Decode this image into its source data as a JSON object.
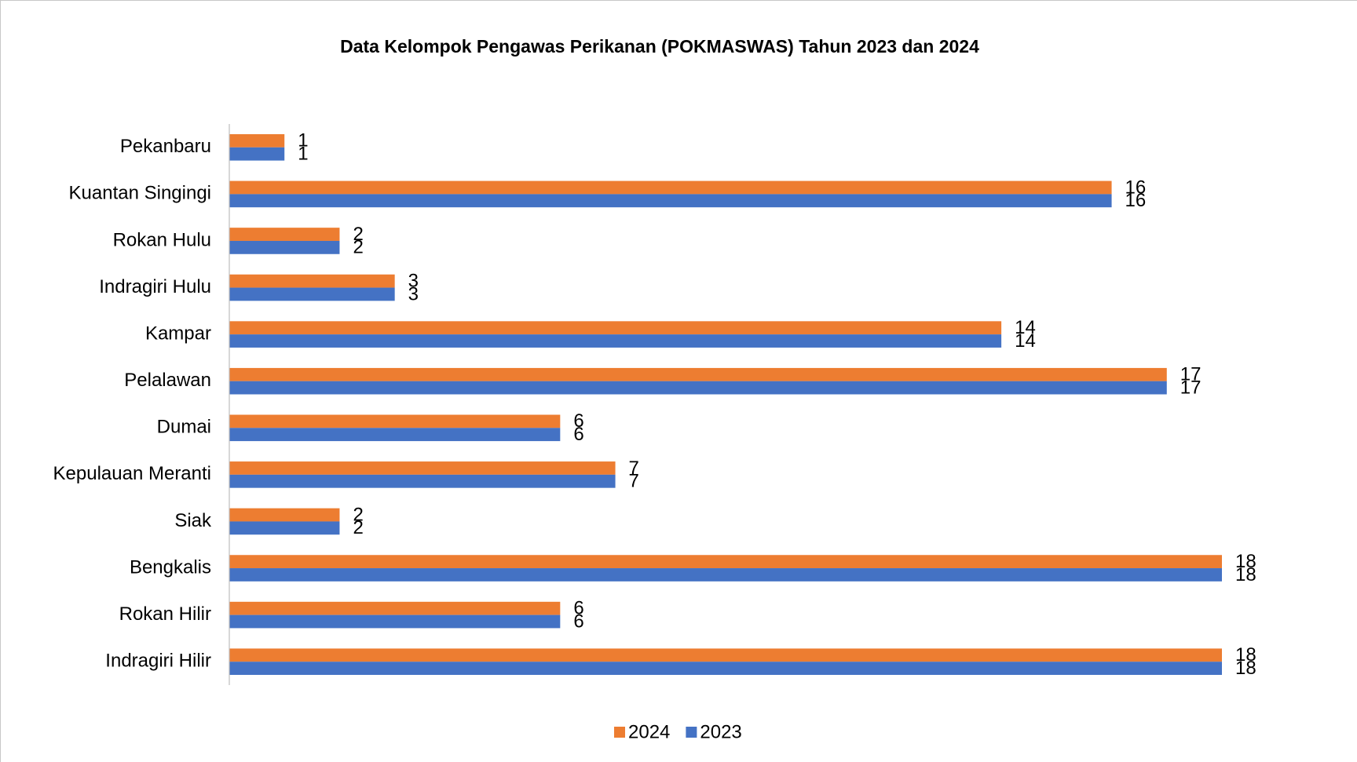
{
  "chart_data": {
    "type": "barh",
    "title": "Data Kelompok Pengawas Perikanan (POKMASWAS) Tahun 2023 dan 2024",
    "categories": [
      "Pekanbaru",
      "Kuantan Singingi",
      "Rokan Hulu",
      "Indragiri Hulu",
      "Kampar",
      "Pelalawan",
      "Dumai",
      "Kepulauan Meranti",
      "Siak",
      "Bengkalis",
      "Rokan Hilir",
      "Indragiri Hilir"
    ],
    "series": [
      {
        "name": "2024",
        "color": "#ed7d31",
        "values": [
          1,
          16,
          2,
          3,
          14,
          17,
          6,
          7,
          2,
          18,
          6,
          18
        ]
      },
      {
        "name": "2023",
        "color": "#4472c4",
        "values": [
          1,
          16,
          2,
          3,
          14,
          17,
          6,
          7,
          2,
          18,
          6,
          18
        ]
      }
    ],
    "legend": "bottom"
  }
}
